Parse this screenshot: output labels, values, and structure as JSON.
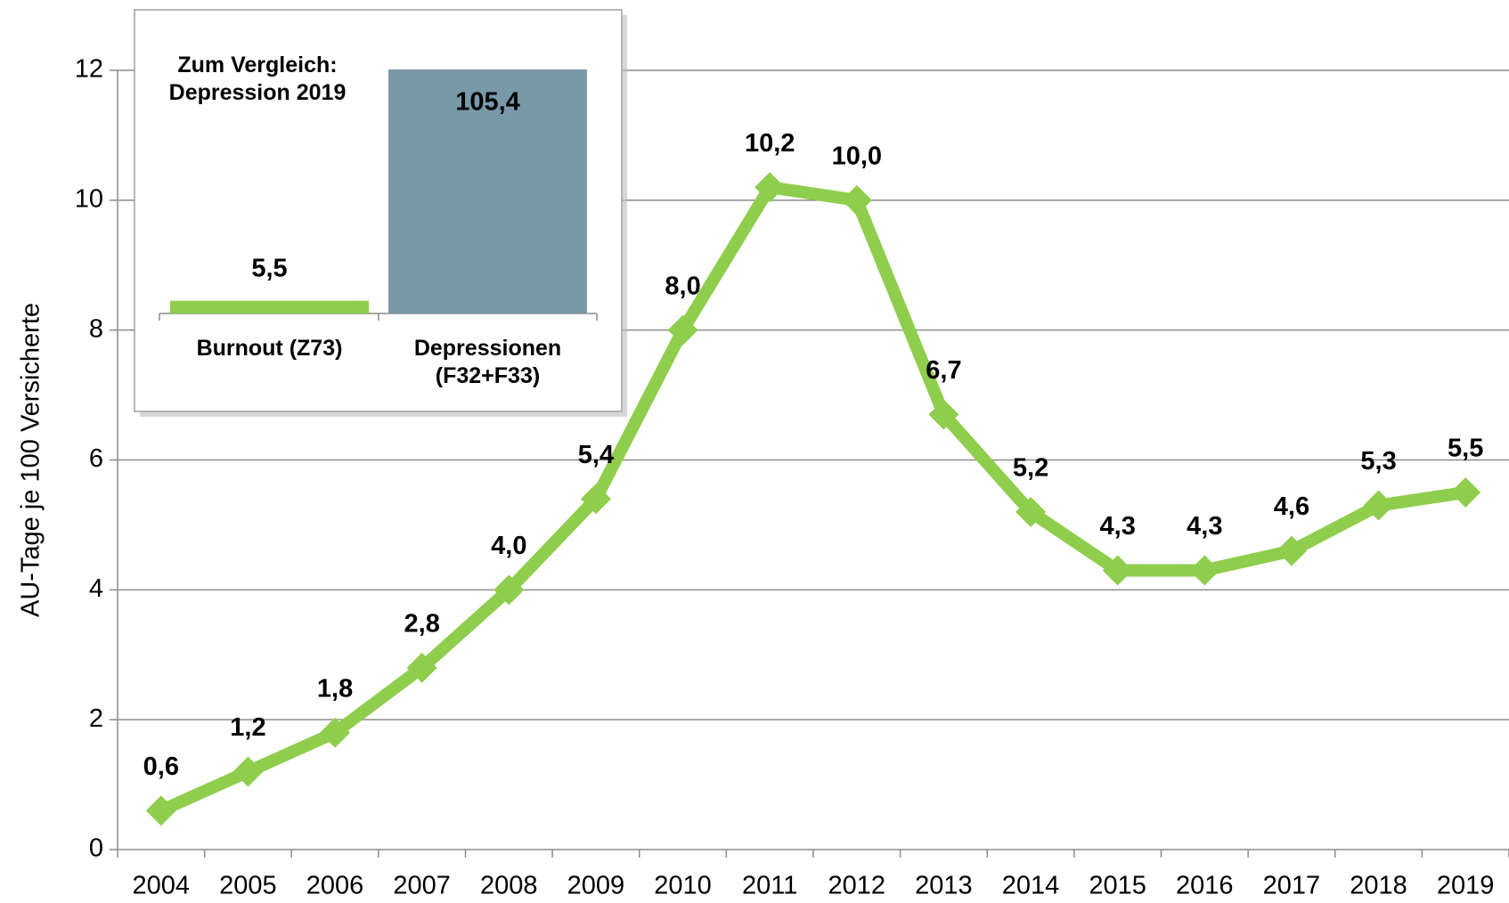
{
  "chart_data": [
    {
      "type": "line",
      "y_label": "AU-Tage je 100 Versicherte",
      "categories": [
        "2004",
        "2005",
        "2006",
        "2007",
        "2008",
        "2009",
        "2010",
        "2011",
        "2012",
        "2013",
        "2014",
        "2015",
        "2016",
        "2017",
        "2018",
        "2019"
      ],
      "values": [
        0.6,
        1.2,
        1.8,
        2.8,
        4.0,
        5.4,
        8.0,
        10.2,
        10.0,
        6.7,
        5.2,
        4.3,
        4.3,
        4.6,
        5.3,
        5.5
      ],
      "value_labels": [
        "0,6",
        "1,2",
        "1,8",
        "2,8",
        "4,0",
        "5,4",
        "8,0",
        "10,2",
        "10,0",
        "6,7",
        "5,2",
        "4,3",
        "4,3",
        "4,6",
        "5,3",
        "5,5"
      ],
      "color": "#8fce4c",
      "ylim": [
        0,
        12
      ],
      "yticks": [
        0,
        2,
        4,
        6,
        8,
        10,
        12
      ],
      "grid": true
    },
    {
      "type": "bar",
      "title": "Zum Vergleich: Depression 2019",
      "categories": [
        "Burnout (Z73)",
        "Depressionen (F32+F33)"
      ],
      "values": [
        5.5,
        105.4
      ],
      "value_labels": [
        "5,5",
        "105,4"
      ],
      "colors": [
        "#8fce4c",
        "#7a99a8"
      ]
    }
  ]
}
